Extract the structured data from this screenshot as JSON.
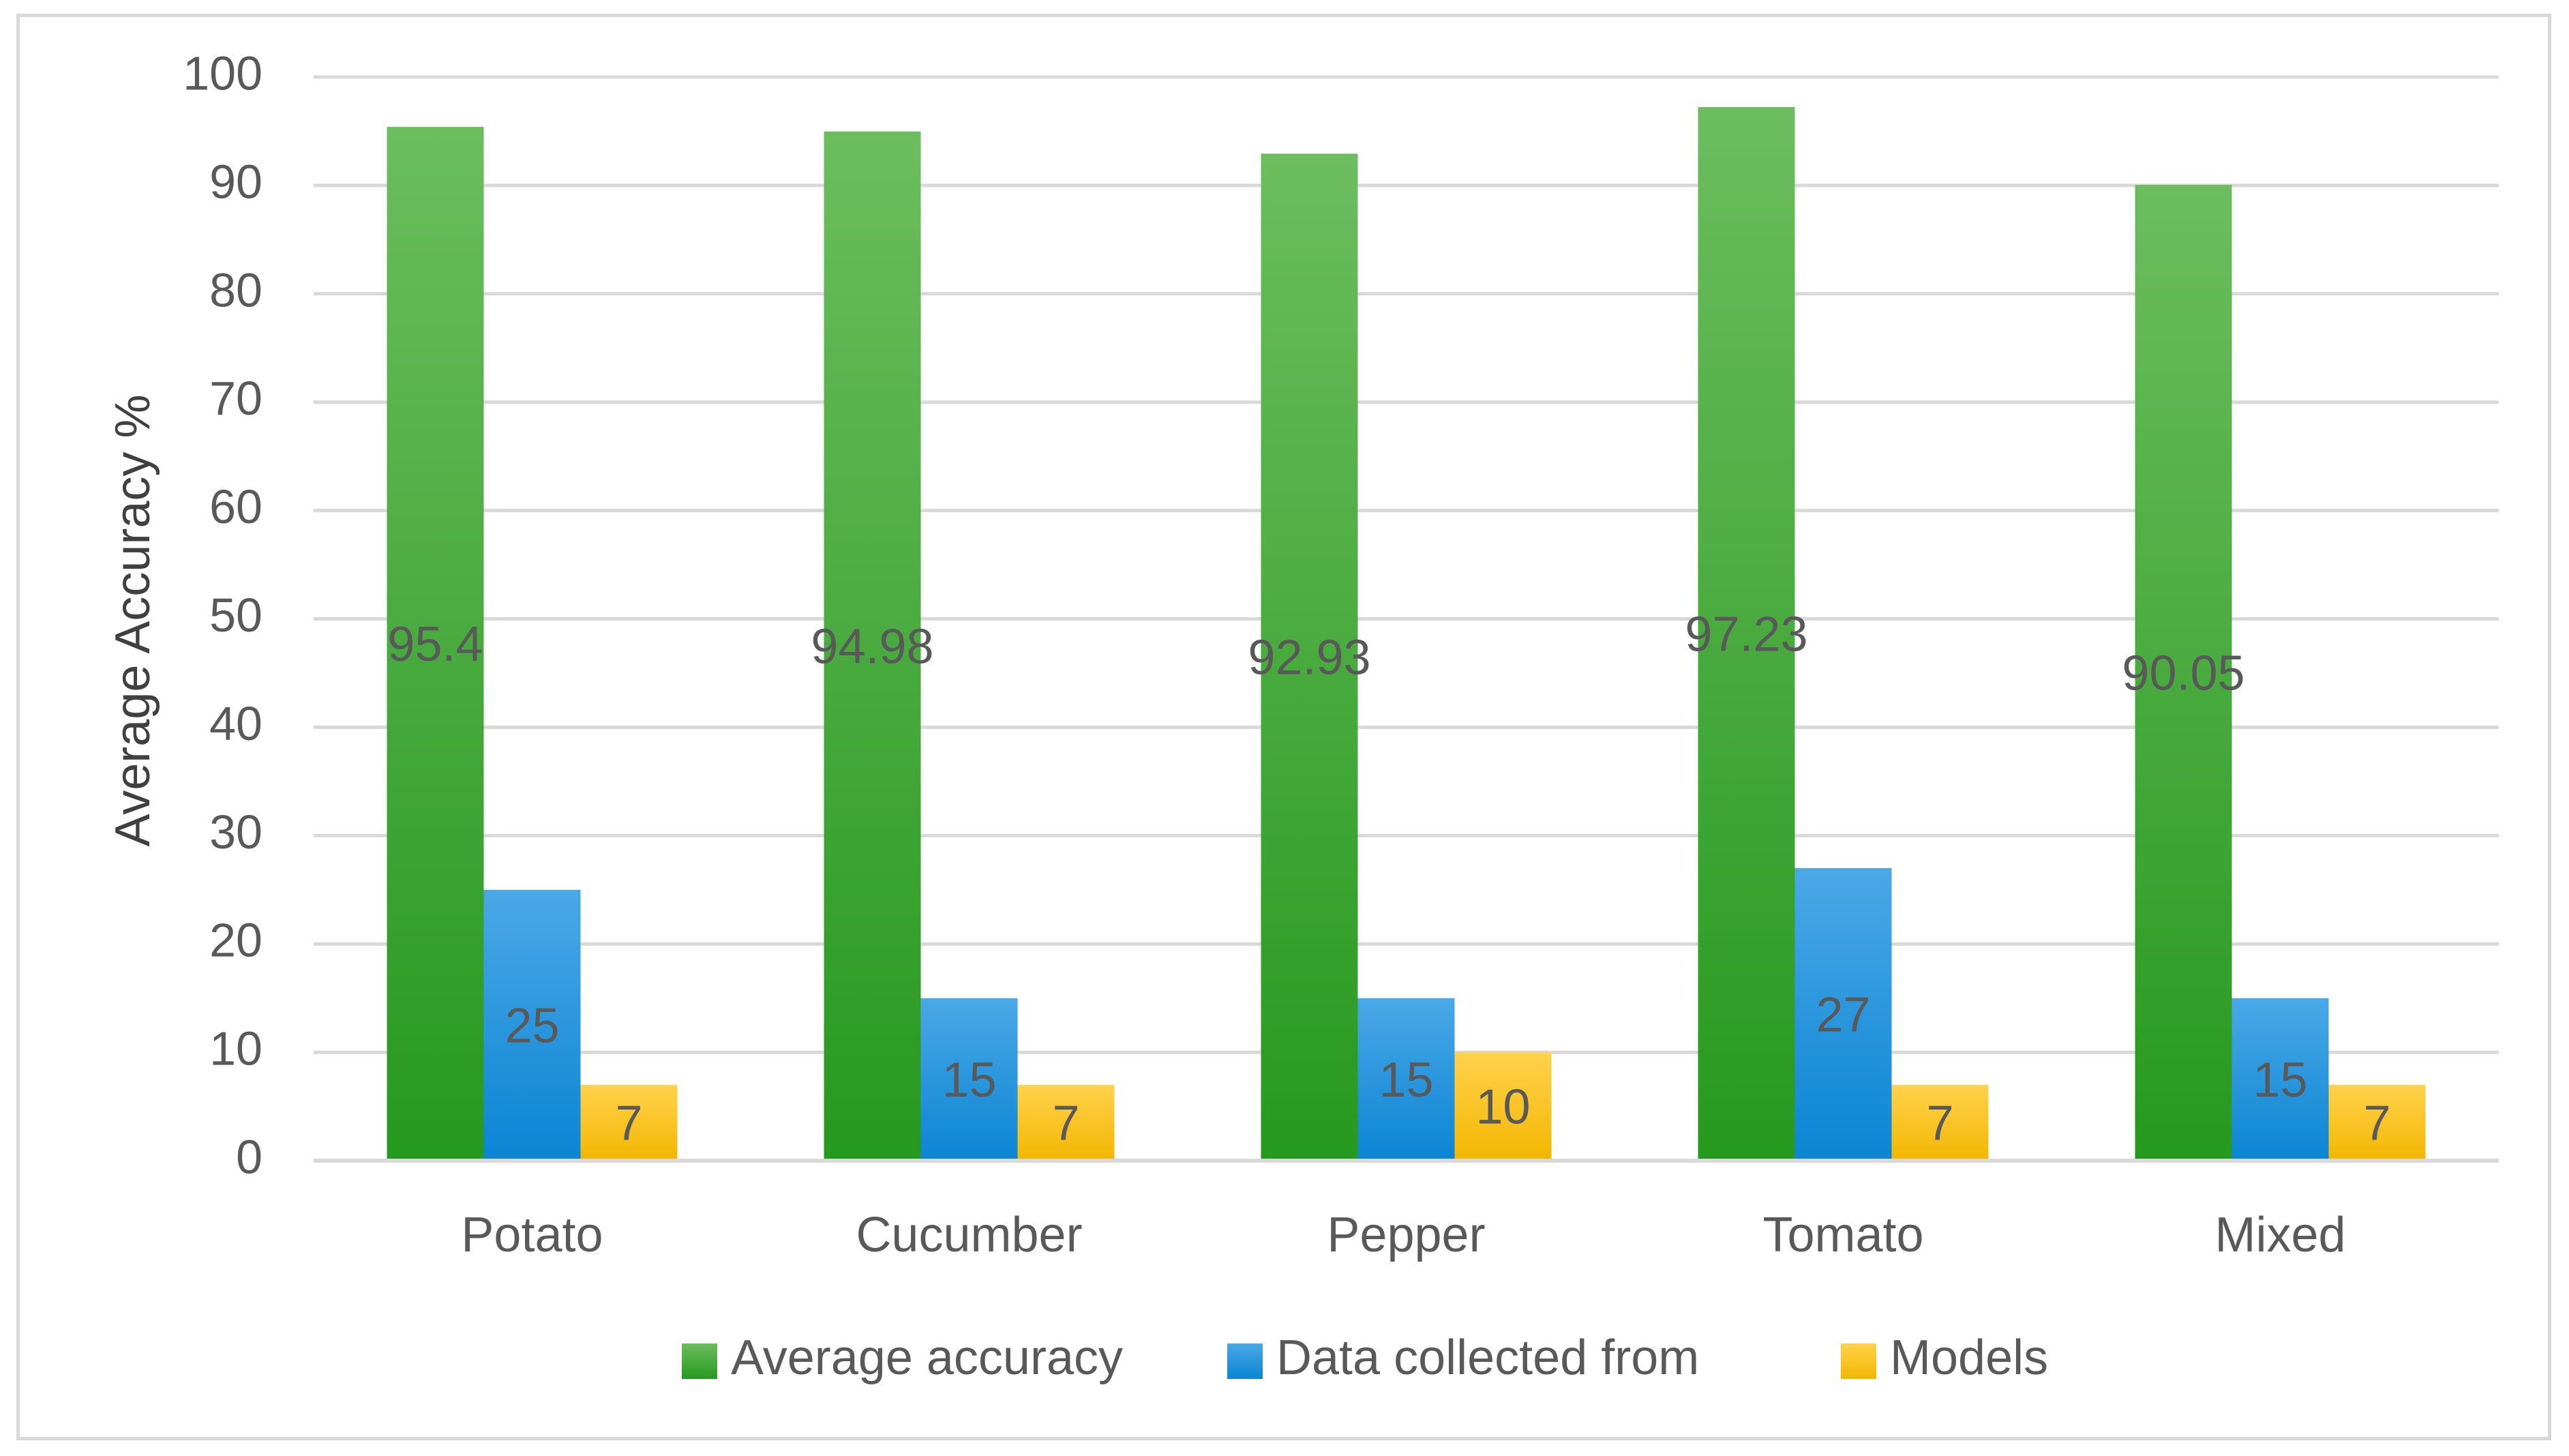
{
  "chart_data": {
    "type": "bar",
    "title": "",
    "xlabel": "",
    "ylabel": "Average Accuracy %",
    "ylim": [
      0,
      100
    ],
    "yticks": [
      0,
      10,
      20,
      30,
      40,
      50,
      60,
      70,
      80,
      90,
      100
    ],
    "grid": true,
    "legend_position": "bottom",
    "categories": [
      "Potato",
      "Cucumber",
      "Pepper",
      "Tomato",
      "Mixed"
    ],
    "series": [
      {
        "name": "Average accuracy",
        "values": [
          95.4,
          94.98,
          92.93,
          97.23,
          90.05
        ],
        "labels": [
          "95.4",
          "94.98",
          "92.93",
          "97.23",
          "90.05"
        ]
      },
      {
        "name": "Data collected from",
        "values": [
          25,
          15,
          15,
          27,
          15
        ],
        "labels": [
          "25",
          "15",
          "15",
          "27",
          "15"
        ]
      },
      {
        "name": "Models",
        "values": [
          7,
          7,
          10,
          7,
          7
        ],
        "labels": [
          "7",
          "7",
          "10",
          "7",
          "7"
        ]
      }
    ]
  },
  "colors": {
    "series": [
      {
        "top": "#6cbd5e",
        "bottom": "#26991f"
      },
      {
        "top": "#4aa8e6",
        "bottom": "#0b85d4"
      },
      {
        "top": "#ffd24d",
        "bottom": "#f2b600"
      }
    ],
    "grid": "#d9d9d9",
    "text": "#595959"
  }
}
